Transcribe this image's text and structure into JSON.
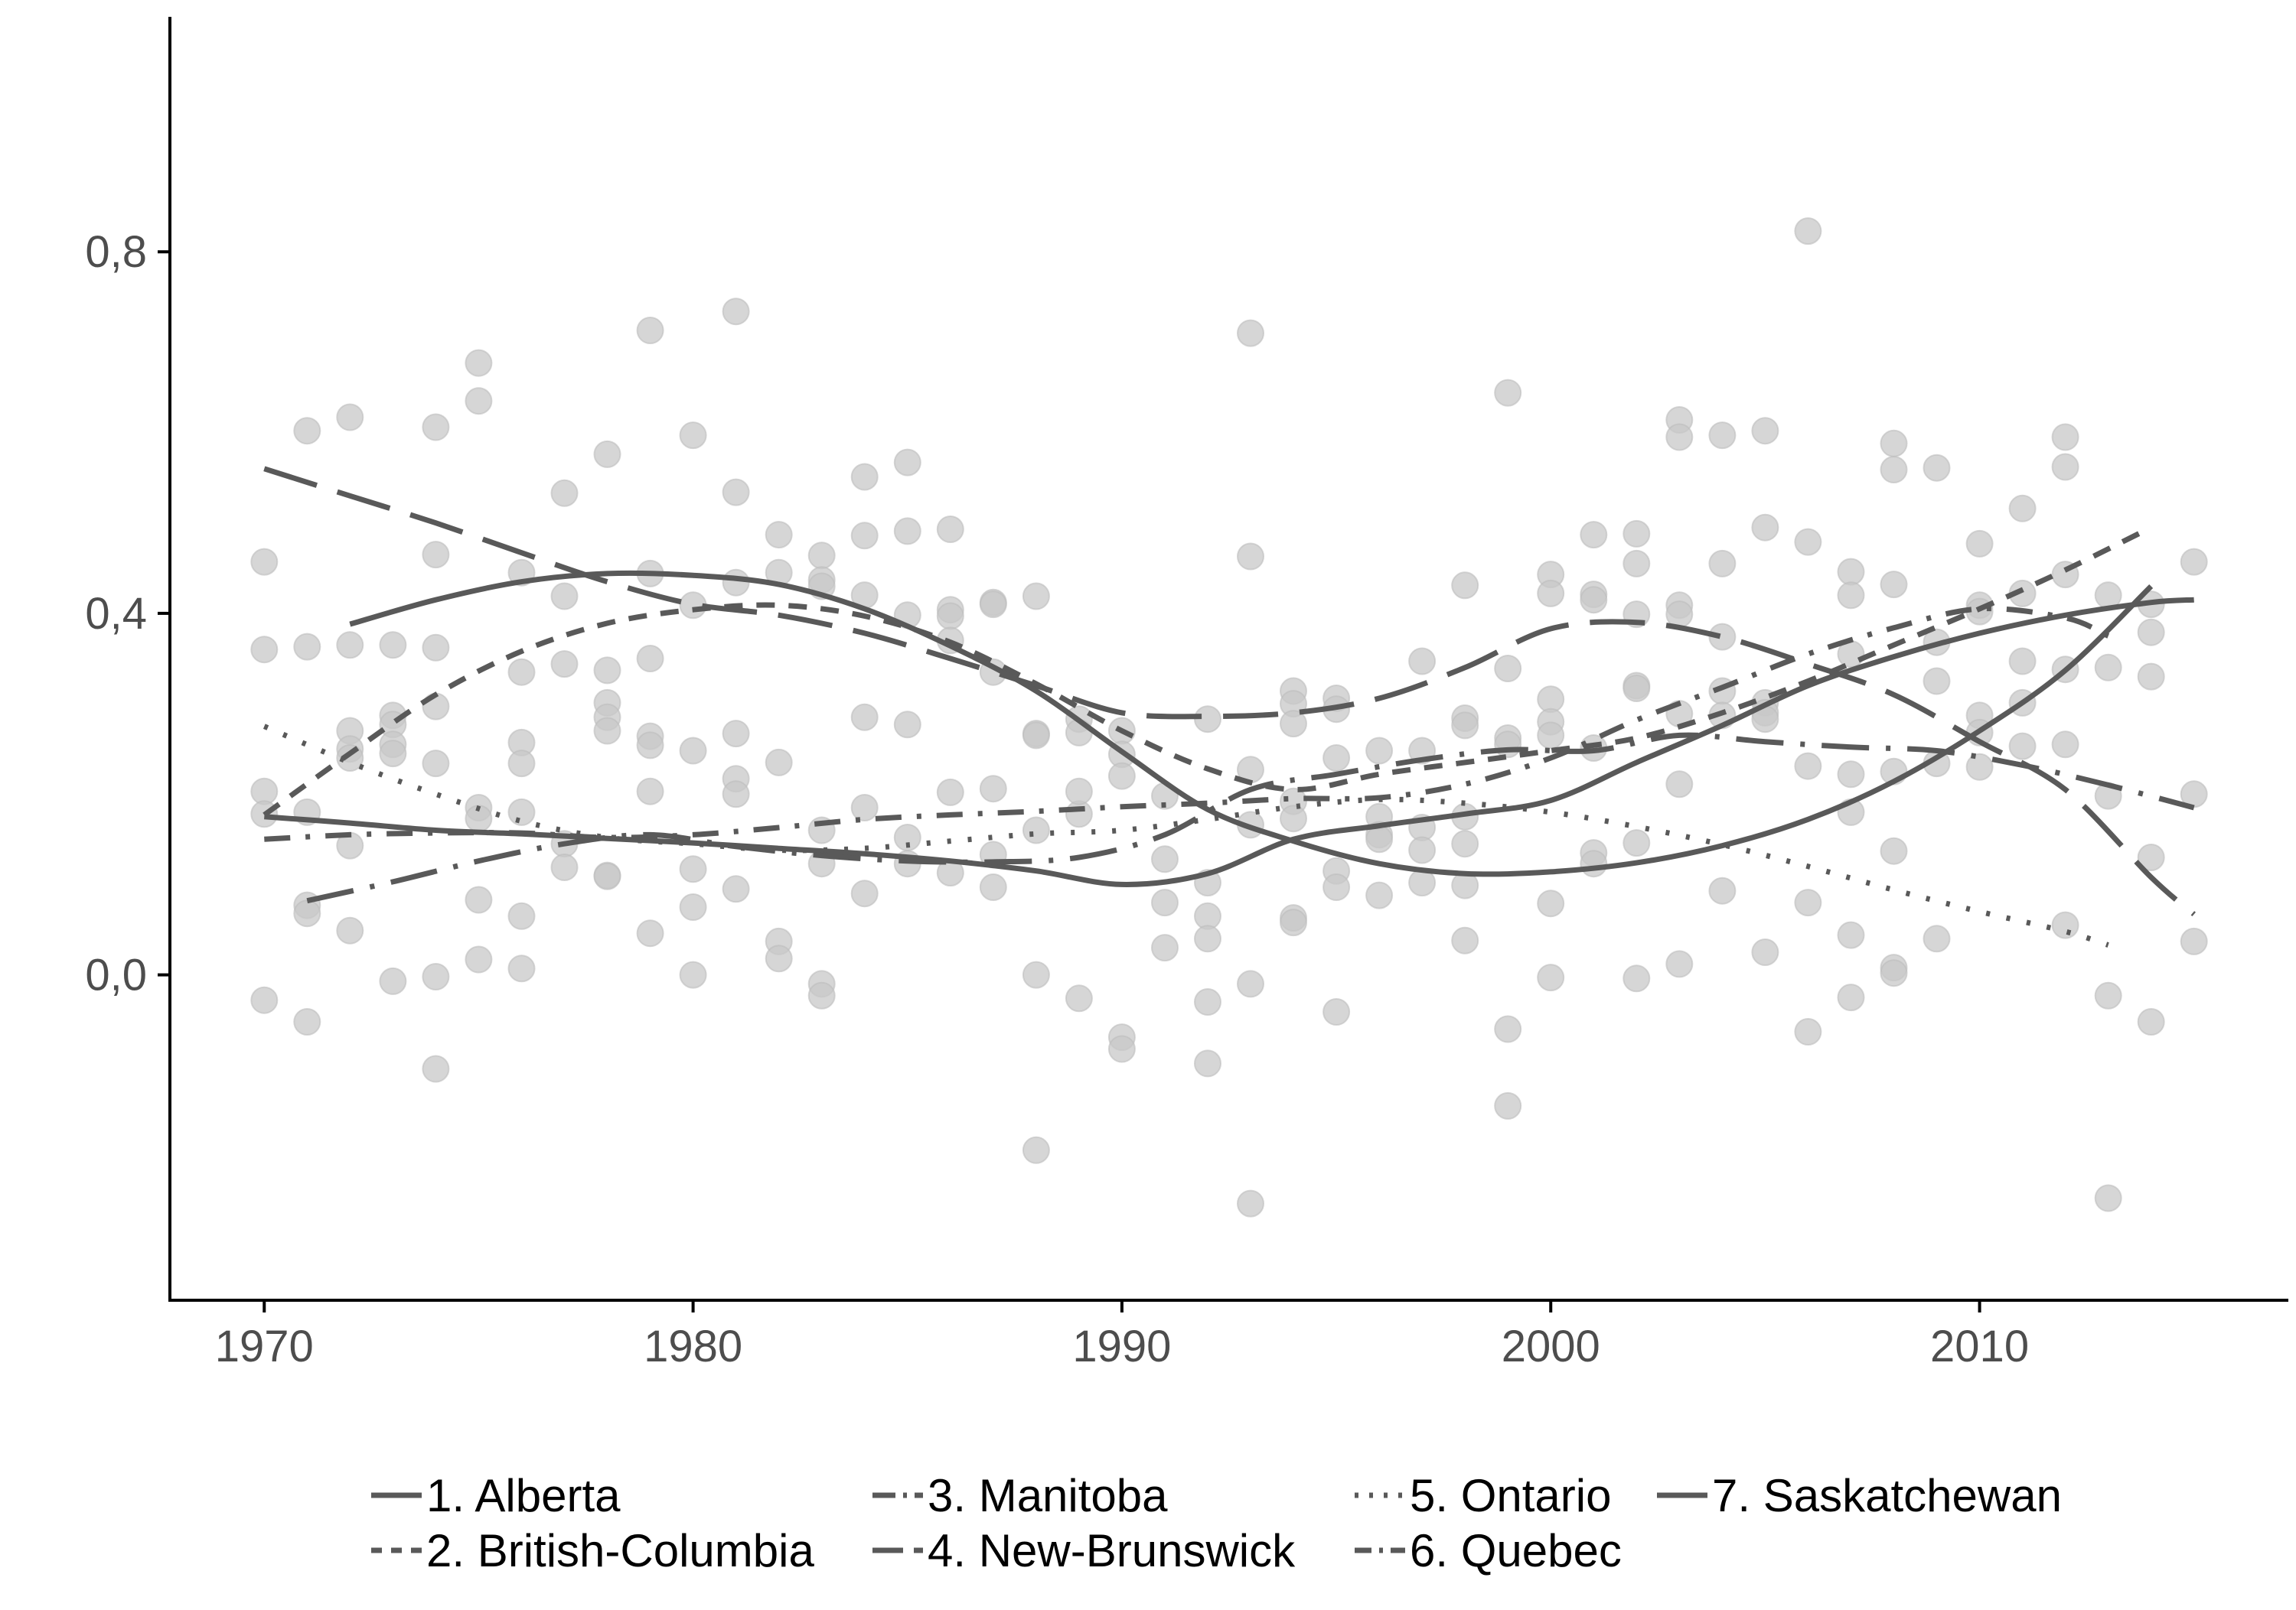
{
  "chart_data": {
    "type": "scatter",
    "title": "",
    "xlabel": "",
    "ylabel": "",
    "xlim": [
      1967.8,
      2017.2
    ],
    "ylim": [
      -0.36,
      1.06
    ],
    "x_ticks": [
      1970,
      1980,
      1990,
      2000,
      2010
    ],
    "x_tick_labels": [
      "1970",
      "1980",
      "1990",
      "2000",
      "2010"
    ],
    "y_ticks": [
      0.0,
      0.4,
      0.8
    ],
    "y_tick_labels": [
      "0,0",
      "0,4",
      "0,8"
    ],
    "grid": false,
    "legend_position": "bottom",
    "colors": {
      "line": "#595959",
      "point": "#c8c8c8",
      "axis": "#000000",
      "tick_text": "#4d4d4d"
    },
    "points": [
      [
        1970,
        0.457
      ],
      [
        1970,
        0.36
      ],
      [
        1970,
        0.203
      ],
      [
        1970,
        0.178
      ],
      [
        1970,
        -0.028
      ],
      [
        1971,
        0.602
      ],
      [
        1971,
        0.363
      ],
      [
        1971,
        0.18
      ],
      [
        1971,
        0.077
      ],
      [
        1971,
        0.068
      ],
      [
        1971,
        -0.052
      ],
      [
        1972,
        0.617
      ],
      [
        1972,
        0.365
      ],
      [
        1972,
        0.27
      ],
      [
        1972,
        0.25
      ],
      [
        1972,
        0.24
      ],
      [
        1972,
        0.143
      ],
      [
        1972,
        0.049
      ],
      [
        1973,
        0.365
      ],
      [
        1973,
        0.287
      ],
      [
        1973,
        0.277
      ],
      [
        1973,
        0.255
      ],
      [
        1973,
        0.245
      ],
      [
        1973,
        -0.007
      ],
      [
        1974,
        0.606
      ],
      [
        1974,
        0.465
      ],
      [
        1974,
        0.362
      ],
      [
        1974,
        0.297
      ],
      [
        1974,
        0.234
      ],
      [
        1974,
        -0.002
      ],
      [
        1974,
        -0.104
      ],
      [
        1975,
        0.677
      ],
      [
        1975,
        0.635
      ],
      [
        1975,
        0.185
      ],
      [
        1975,
        0.173
      ],
      [
        1975,
        0.083
      ],
      [
        1975,
        0.017
      ],
      [
        1976,
        0.445
      ],
      [
        1976,
        0.335
      ],
      [
        1976,
        0.257
      ],
      [
        1976,
        0.234
      ],
      [
        1976,
        0.18
      ],
      [
        1976,
        0.065
      ],
      [
        1976,
        0.007
      ],
      [
        1977,
        0.533
      ],
      [
        1977,
        0.419
      ],
      [
        1977,
        0.344
      ],
      [
        1977,
        0.145
      ],
      [
        1977,
        0.119
      ],
      [
        1978,
        0.576
      ],
      [
        1978,
        0.337
      ],
      [
        1978,
        0.301
      ],
      [
        1978,
        0.285
      ],
      [
        1978,
        0.27
      ],
      [
        1978,
        0.11
      ],
      [
        1978,
        0.109
      ],
      [
        1979,
        0.713
      ],
      [
        1979,
        0.444
      ],
      [
        1979,
        0.35
      ],
      [
        1979,
        0.264
      ],
      [
        1979,
        0.254
      ],
      [
        1979,
        0.203
      ],
      [
        1979,
        0.046
      ],
      [
        1980,
        0.597
      ],
      [
        1980,
        0.409
      ],
      [
        1980,
        0.248
      ],
      [
        1980,
        0.117
      ],
      [
        1980,
        0.075
      ],
      [
        1980,
        0.0
      ],
      [
        1981,
        0.734
      ],
      [
        1981,
        0.534
      ],
      [
        1981,
        0.434
      ],
      [
        1981,
        0.267
      ],
      [
        1981,
        0.217
      ],
      [
        1981,
        0.2
      ],
      [
        1981,
        0.095
      ],
      [
        1982,
        0.487
      ],
      [
        1982,
        0.445
      ],
      [
        1982,
        0.235
      ],
      [
        1982,
        0.037
      ],
      [
        1982,
        0.018
      ],
      [
        1983,
        0.464
      ],
      [
        1983,
        0.437
      ],
      [
        1983,
        0.43
      ],
      [
        1983,
        0.16
      ],
      [
        1983,
        0.123
      ],
      [
        1983,
        -0.01
      ],
      [
        1983,
        -0.023
      ],
      [
        1984,
        0.551
      ],
      [
        1984,
        0.486
      ],
      [
        1984,
        0.42
      ],
      [
        1984,
        0.285
      ],
      [
        1984,
        0.185
      ],
      [
        1984,
        0.09
      ],
      [
        1985,
        0.567
      ],
      [
        1985,
        0.491
      ],
      [
        1985,
        0.398
      ],
      [
        1985,
        0.277
      ],
      [
        1985,
        0.152
      ],
      [
        1985,
        0.123
      ],
      [
        1986,
        0.493
      ],
      [
        1986,
        0.404
      ],
      [
        1986,
        0.397
      ],
      [
        1986,
        0.37
      ],
      [
        1986,
        0.202
      ],
      [
        1986,
        0.113
      ],
      [
        1987,
        0.412
      ],
      [
        1987,
        0.41
      ],
      [
        1987,
        0.335
      ],
      [
        1987,
        0.206
      ],
      [
        1987,
        0.133
      ],
      [
        1987,
        0.097
      ],
      [
        1988,
        0.419
      ],
      [
        1988,
        0.267
      ],
      [
        1988,
        0.265
      ],
      [
        1988,
        0.16
      ],
      [
        1988,
        0.0
      ],
      [
        1988,
        -0.194
      ],
      [
        1989,
        0.283
      ],
      [
        1989,
        0.268
      ],
      [
        1989,
        0.178
      ],
      [
        1989,
        0.203
      ],
      [
        1989,
        -0.026
      ],
      [
        1990,
        0.27
      ],
      [
        1990,
        0.244
      ],
      [
        1990,
        0.22
      ],
      [
        1990,
        -0.069
      ],
      [
        1990,
        -0.082
      ],
      [
        1991,
        0.198
      ],
      [
        1991,
        0.128
      ],
      [
        1991,
        0.08
      ],
      [
        1991,
        0.03
      ],
      [
        1992,
        0.283
      ],
      [
        1992,
        0.102
      ],
      [
        1992,
        0.065
      ],
      [
        1992,
        0.04
      ],
      [
        1992,
        -0.03
      ],
      [
        1992,
        -0.098
      ],
      [
        1993,
        0.71
      ],
      [
        1993,
        0.463
      ],
      [
        1993,
        0.227
      ],
      [
        1993,
        0.166
      ],
      [
        1993,
        -0.01
      ],
      [
        1993,
        -0.253
      ],
      [
        1994,
        0.314
      ],
      [
        1994,
        0.3
      ],
      [
        1994,
        0.278
      ],
      [
        1994,
        0.192
      ],
      [
        1994,
        0.173
      ],
      [
        1994,
        0.063
      ],
      [
        1994,
        0.058
      ],
      [
        1995,
        0.306
      ],
      [
        1995,
        0.294
      ],
      [
        1995,
        0.24
      ],
      [
        1995,
        0.115
      ],
      [
        1995,
        0.097
      ],
      [
        1995,
        -0.041
      ],
      [
        1996,
        0.248
      ],
      [
        1996,
        0.175
      ],
      [
        1996,
        0.155
      ],
      [
        1996,
        0.15
      ],
      [
        1996,
        0.088
      ],
      [
        1997,
        0.347
      ],
      [
        1997,
        0.248
      ],
      [
        1997,
        0.163
      ],
      [
        1997,
        0.138
      ],
      [
        1997,
        0.102
      ],
      [
        1998,
        0.431
      ],
      [
        1998,
        0.284
      ],
      [
        1998,
        0.276
      ],
      [
        1998,
        0.175
      ],
      [
        1998,
        0.145
      ],
      [
        1998,
        0.099
      ],
      [
        1998,
        0.038
      ],
      [
        1999,
        0.644
      ],
      [
        1999,
        0.339
      ],
      [
        1999,
        0.262
      ],
      [
        1999,
        0.255
      ],
      [
        1999,
        -0.06
      ],
      [
        1999,
        -0.145
      ],
      [
        2000,
        0.443
      ],
      [
        2000,
        0.422
      ],
      [
        2000,
        0.305
      ],
      [
        2000,
        0.28
      ],
      [
        2000,
        0.265
      ],
      [
        2000,
        0.079
      ],
      [
        2000,
        -0.003
      ],
      [
        2001,
        0.487
      ],
      [
        2001,
        0.421
      ],
      [
        2001,
        0.415
      ],
      [
        2001,
        0.251
      ],
      [
        2001,
        0.135
      ],
      [
        2001,
        0.123
      ],
      [
        2002,
        0.488
      ],
      [
        2002,
        0.455
      ],
      [
        2002,
        0.399
      ],
      [
        2002,
        0.32
      ],
      [
        2002,
        0.317
      ],
      [
        2002,
        0.146
      ],
      [
        2002,
        -0.004
      ],
      [
        2003,
        0.614
      ],
      [
        2003,
        0.595
      ],
      [
        2003,
        0.409
      ],
      [
        2003,
        0.399
      ],
      [
        2003,
        0.289
      ],
      [
        2003,
        0.211
      ],
      [
        2003,
        0.012
      ],
      [
        2004,
        0.597
      ],
      [
        2004,
        0.455
      ],
      [
        2004,
        0.374
      ],
      [
        2004,
        0.314
      ],
      [
        2004,
        0.287
      ],
      [
        2004,
        0.093
      ],
      [
        2005,
        0.602
      ],
      [
        2005,
        0.495
      ],
      [
        2005,
        0.301
      ],
      [
        2005,
        0.29
      ],
      [
        2005,
        0.283
      ],
      [
        2005,
        0.025
      ],
      [
        2006,
        0.823
      ],
      [
        2006,
        0.479
      ],
      [
        2006,
        0.231
      ],
      [
        2006,
        0.08
      ],
      [
        2006,
        -0.063
      ],
      [
        2007,
        0.446
      ],
      [
        2007,
        0.42
      ],
      [
        2007,
        0.355
      ],
      [
        2007,
        0.222
      ],
      [
        2007,
        0.18
      ],
      [
        2007,
        0.044
      ],
      [
        2007,
        -0.025
      ],
      [
        2008,
        0.588
      ],
      [
        2008,
        0.559
      ],
      [
        2008,
        0.432
      ],
      [
        2008,
        0.225
      ],
      [
        2008,
        0.137
      ],
      [
        2008,
        0.008
      ],
      [
        2008,
        0.002
      ],
      [
        2009,
        0.561
      ],
      [
        2009,
        0.368
      ],
      [
        2009,
        0.325
      ],
      [
        2009,
        0.234
      ],
      [
        2009,
        0.04
      ],
      [
        2010,
        0.477
      ],
      [
        2010,
        0.409
      ],
      [
        2010,
        0.402
      ],
      [
        2010,
        0.287
      ],
      [
        2010,
        0.268
      ],
      [
        2010,
        0.23
      ],
      [
        2011,
        0.516
      ],
      [
        2011,
        0.422
      ],
      [
        2011,
        0.347
      ],
      [
        2011,
        0.301
      ],
      [
        2011,
        0.253
      ],
      [
        2012,
        0.595
      ],
      [
        2012,
        0.562
      ],
      [
        2012,
        0.443
      ],
      [
        2012,
        0.338
      ],
      [
        2012,
        0.255
      ],
      [
        2012,
        0.055
      ],
      [
        2013,
        0.42
      ],
      [
        2013,
        0.34
      ],
      [
        2013,
        0.198
      ],
      [
        2013,
        -0.023
      ],
      [
        2013,
        -0.247
      ],
      [
        2014,
        0.33
      ],
      [
        2014,
        0.379
      ],
      [
        2014,
        0.41
      ],
      [
        2014,
        0.13
      ],
      [
        2014,
        -0.052
      ],
      [
        2015,
        0.457
      ],
      [
        2015,
        0.2
      ],
      [
        2015,
        0.037
      ]
    ],
    "series": [
      {
        "name": "1. Alberta",
        "dash": "solid",
        "x": [
          1970,
          1972,
          1974,
          1976,
          1978,
          1980,
          1982,
          1984,
          1986,
          1988,
          1990,
          1992,
          1994,
          1996,
          1998,
          2000,
          2002,
          2004,
          2006,
          2008,
          2010,
          2012,
          2014,
          2015
        ],
        "y": [
          0.175,
          0.168,
          0.16,
          0.156,
          0.151,
          0.146,
          0.14,
          0.134,
          0.126,
          0.115,
          0.1,
          0.112,
          0.15,
          0.165,
          0.178,
          0.193,
          0.235,
          0.276,
          0.32,
          0.352,
          0.378,
          0.398,
          0.412,
          0.415
        ]
      },
      {
        "name": "2. British-Columbia",
        "dash": "shortdash",
        "x": [
          1970,
          1972,
          1974,
          1976,
          1978,
          1980,
          1982,
          1984,
          1986,
          1988,
          1990,
          1992,
          1994,
          1996,
          1998,
          2000,
          2002,
          2004,
          2006,
          2008,
          2010,
          2012,
          2014
        ],
        "y": [
          0.177,
          0.245,
          0.31,
          0.358,
          0.389,
          0.404,
          0.409,
          0.397,
          0.368,
          0.322,
          0.27,
          0.228,
          0.205,
          0.222,
          0.235,
          0.248,
          0.262,
          0.29,
          0.325,
          0.365,
          0.405,
          0.448,
          0.495
        ]
      },
      {
        "name": "3. Manitoba",
        "dash": "longdashdot",
        "x": [
          1971,
          1973,
          1975,
          1977,
          1979,
          1981,
          1983,
          1985,
          1987,
          1989,
          1991,
          1993,
          1995,
          1997,
          1999,
          2001,
          2003,
          2005,
          2007,
          2009,
          2011,
          2013,
          2015
        ],
        "y": [
          0.082,
          0.103,
          0.126,
          0.145,
          0.155,
          0.142,
          0.132,
          0.126,
          0.125,
          0.13,
          0.155,
          0.205,
          0.222,
          0.238,
          0.249,
          0.248,
          0.265,
          0.258,
          0.252,
          0.248,
          0.232,
          0.21,
          0.185
        ]
      },
      {
        "name": "4. New-Brunswick",
        "dash": "longdash",
        "x": [
          1970,
          1972,
          1974,
          1976,
          1978,
          1980,
          1982,
          1984,
          1986,
          1988,
          1990,
          1992,
          1994,
          1996,
          1998,
          2000,
          2002,
          2004,
          2006,
          2008,
          2010,
          2012,
          2014,
          2015
        ],
        "y": [
          0.56,
          0.53,
          0.5,
          0.467,
          0.435,
          0.41,
          0.398,
          0.378,
          0.35,
          0.32,
          0.29,
          0.286,
          0.29,
          0.306,
          0.34,
          0.383,
          0.39,
          0.374,
          0.344,
          0.31,
          0.258,
          0.205,
          0.108,
          0.067
        ]
      },
      {
        "name": "5. Ontario",
        "dash": "dotted",
        "x": [
          1970,
          1972,
          1974,
          1976,
          1978,
          1980,
          1982,
          1984,
          1986,
          1988,
          1990,
          1992,
          1994,
          1996,
          1998,
          2000,
          2002,
          2004,
          2006,
          2008,
          2010,
          2012,
          2013
        ],
        "y": [
          0.275,
          0.235,
          0.2,
          0.17,
          0.152,
          0.145,
          0.138,
          0.14,
          0.148,
          0.156,
          0.16,
          0.172,
          0.186,
          0.194,
          0.19,
          0.18,
          0.164,
          0.144,
          0.12,
          0.094,
          0.07,
          0.048,
          0.033
        ]
      },
      {
        "name": "6. Quebec",
        "dash": "dashdot",
        "x": [
          1970,
          1972,
          1974,
          1976,
          1978,
          1980,
          1982,
          1984,
          1986,
          1988,
          1990,
          1992,
          1994,
          1996,
          1998,
          2000,
          2002,
          2004,
          2006,
          2008,
          2010,
          2012,
          2013
        ],
        "y": [
          0.15,
          0.155,
          0.157,
          0.157,
          0.152,
          0.155,
          0.163,
          0.172,
          0.177,
          0.181,
          0.186,
          0.19,
          0.195,
          0.196,
          0.211,
          0.24,
          0.282,
          0.318,
          0.355,
          0.384,
          0.405,
          0.395,
          0.375
        ]
      },
      {
        "name": "7. Saskatchewan",
        "dash": "solid",
        "x": [
          1972,
          1974,
          1976,
          1978,
          1980,
          1982,
          1984,
          1986,
          1988,
          1990,
          1992,
          1994,
          1996,
          1998,
          2000,
          2002,
          2004,
          2006,
          2008,
          2010,
          2012,
          2014
        ],
        "y": [
          0.388,
          0.415,
          0.435,
          0.444,
          0.442,
          0.432,
          0.405,
          0.364,
          0.314,
          0.247,
          0.183,
          0.148,
          0.123,
          0.112,
          0.114,
          0.124,
          0.143,
          0.172,
          0.214,
          0.27,
          0.337,
          0.43
        ]
      }
    ],
    "legend": {
      "rows": [
        [
          "1. Alberta",
          "3. Manitoba",
          "5. Ontario",
          "7. Saskatchewan"
        ],
        [
          "2. British-Columbia",
          "4. New-Brunswick",
          "6. Quebec"
        ]
      ]
    }
  }
}
